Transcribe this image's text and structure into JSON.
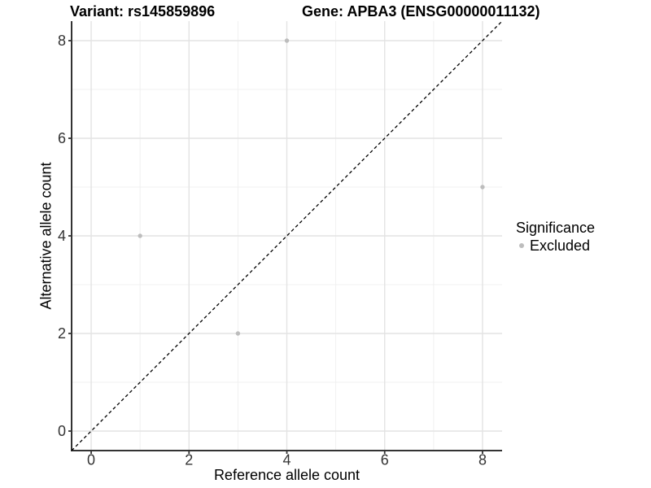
{
  "header": {
    "variant_title": "Variant: rs145859896",
    "gene_title": "Gene: APBA3 (ENSG00000011132)"
  },
  "chart_data": {
    "type": "scatter",
    "title": "Variant: rs145859896 / Gene: APBA3 (ENSG00000011132)",
    "xlabel": "Reference allele count",
    "ylabel": "Alternative allele count",
    "xlim": [
      -0.4,
      8.4
    ],
    "ylim": [
      -0.4,
      8.4
    ],
    "xticks": [
      0,
      2,
      4,
      6,
      8
    ],
    "yticks": [
      0,
      2,
      4,
      6,
      8
    ],
    "minor_xticks": [
      1,
      3,
      5,
      7
    ],
    "minor_yticks": [
      1,
      3,
      5,
      7
    ],
    "grid": "major+minor",
    "legend": {
      "title": "Significance",
      "position": "right",
      "entries": [
        {
          "label": "Excluded",
          "color": "#bdbdbd",
          "marker": "circle"
        }
      ]
    },
    "series": [
      {
        "name": "Excluded",
        "color": "#bdbdbd",
        "marker": "circle",
        "points": [
          {
            "x": 1,
            "y": 4
          },
          {
            "x": 3,
            "y": 2
          },
          {
            "x": 4,
            "y": 8
          },
          {
            "x": 8,
            "y": 5
          }
        ]
      }
    ],
    "reference_line": {
      "kind": "identity y=x",
      "style": "dashed",
      "color": "#000000",
      "x0": -0.4,
      "y0": -0.4,
      "x1": 8.4,
      "y1": 8.4
    }
  },
  "style": {
    "background": "#ffffff",
    "axis_line_color": "#333333",
    "tick_label_color": "#333333",
    "major_grid_color": "#e3e3e3",
    "minor_grid_color": "#f0f0f0",
    "point_color": "#bdbdbd",
    "reference_line_color": "#000000"
  }
}
